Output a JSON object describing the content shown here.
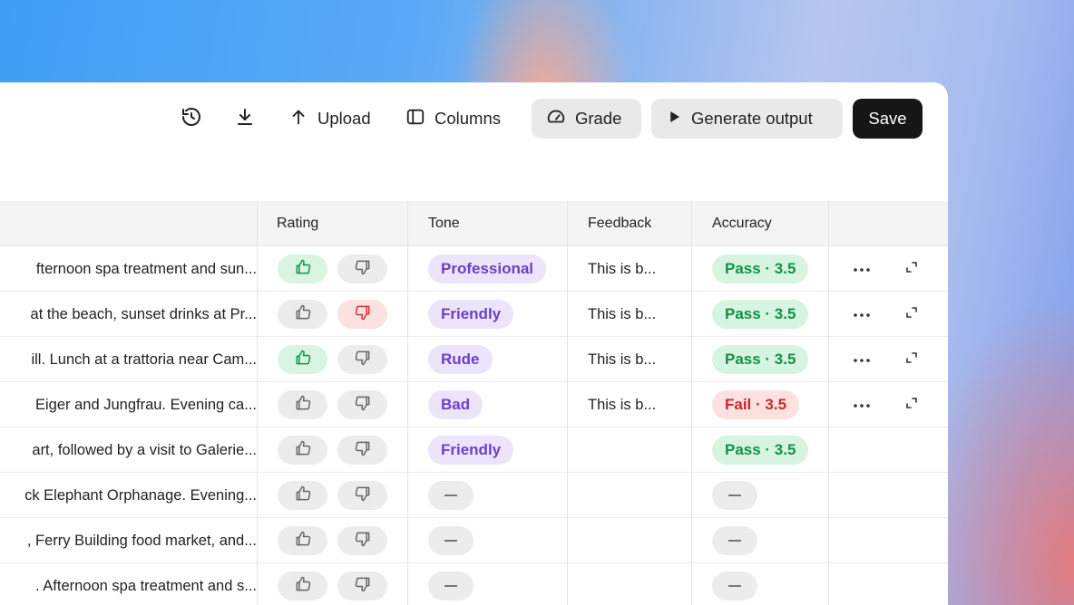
{
  "toolbar": {
    "history_icon": "history-icon",
    "download_icon": "download-icon",
    "upload_label": "Upload",
    "columns_label": "Columns",
    "grade_label": "Grade",
    "generate_label": "Generate output",
    "save_label": "Save"
  },
  "table": {
    "headers": {
      "rating": "Rating",
      "tone": "Tone",
      "feedback": "Feedback",
      "accuracy": "Accuracy"
    },
    "rows": [
      {
        "prompt": "fternoon spa treatment and sun...",
        "rating": "up",
        "tone": "Professional",
        "feedback": "This is b...",
        "accuracy": "Pass · 3.5",
        "status": "pass",
        "actions": true
      },
      {
        "prompt": "at the beach, sunset drinks at Pr...",
        "rating": "down",
        "tone": "Friendly",
        "feedback": "This is b...",
        "accuracy": "Pass · 3.5",
        "status": "pass",
        "actions": true
      },
      {
        "prompt": "ill. Lunch at a trattoria near Cam...",
        "rating": "up",
        "tone": "Rude",
        "feedback": "This is b...",
        "accuracy": "Pass · 3.5",
        "status": "pass",
        "actions": true
      },
      {
        "prompt": "Eiger and Jungfrau. Evening ca...",
        "rating": "none",
        "tone": "Bad",
        "feedback": "This is b...",
        "accuracy": "Fail · 3.5",
        "status": "fail",
        "actions": true
      },
      {
        "prompt": "art, followed by a visit to Galerie...",
        "rating": "none",
        "tone": "Friendly",
        "feedback": "",
        "accuracy": "Pass · 3.5",
        "status": "pass",
        "actions": false
      },
      {
        "prompt": "ck Elephant Orphanage. Evening...",
        "rating": "none",
        "tone": "—",
        "feedback": "",
        "accuracy": "—",
        "status": "empty",
        "actions": false
      },
      {
        "prompt": ", Ferry Building food market, and...",
        "rating": "none",
        "tone": "—",
        "feedback": "",
        "accuracy": "—",
        "status": "empty",
        "actions": false
      },
      {
        "prompt": ". Afternoon spa treatment and s...",
        "rating": "none",
        "tone": "—",
        "feedback": "",
        "accuracy": "—",
        "status": "empty",
        "actions": false
      }
    ]
  },
  "colors": {
    "pass_bg": "#d7f4e0",
    "pass_text": "#12914a",
    "fail_bg": "#fde0e0",
    "fail_text": "#c42b2b",
    "tone_bg": "#ece4fb",
    "tone_text": "#6c3fc8",
    "save_bg": "#161616"
  }
}
